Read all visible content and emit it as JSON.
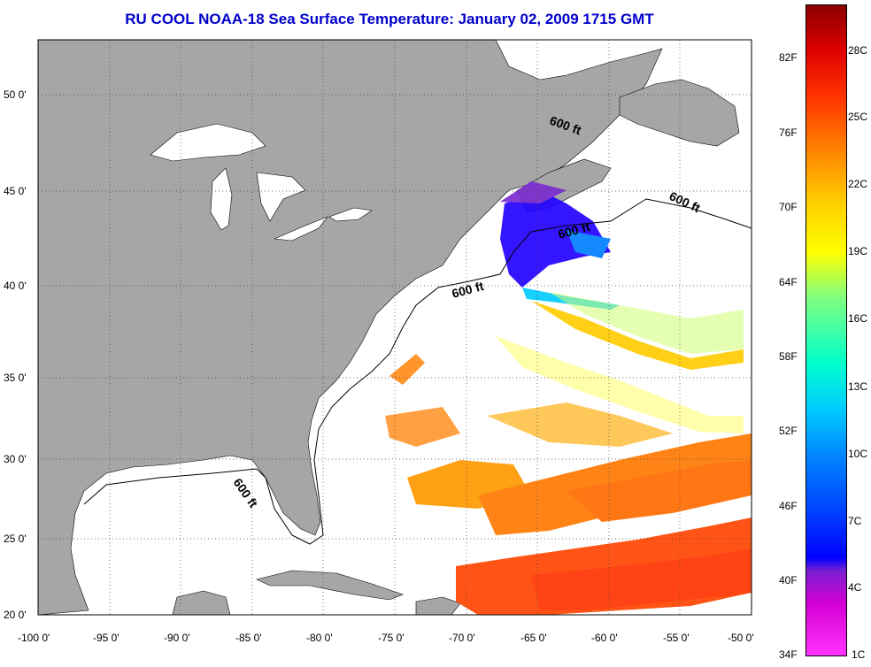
{
  "title": "RU COOL  NOAA-18  Sea Surface Temperature:  January 02, 2009 1715 GMT",
  "x_ticks": [
    "-100 0'",
    "-95 0'",
    "-90 0'",
    "-85 0'",
    "-80 0'",
    "-75 0'",
    "-70 0'",
    "-65 0'",
    "-60 0'",
    "-55 0'",
    "-50 0'"
  ],
  "y_ticks": [
    "50 0'",
    "45 0'",
    "40 0'",
    "35 0'",
    "30 0'",
    "25 0'",
    "20 0'"
  ],
  "isobath_labels": [
    "600 ft",
    "600 ft",
    "600 ft",
    "600 ft",
    "600 ft"
  ],
  "colorbar": {
    "fahrenheit": [
      "82F",
      "76F",
      "70F",
      "64F",
      "58F",
      "52F",
      "46F",
      "40F",
      "34F"
    ],
    "celsius": [
      "28C",
      "25C",
      "22C",
      "19C",
      "16C",
      "13C",
      "10C",
      "7C",
      "4C",
      "1C"
    ]
  },
  "colors": {
    "land": "#a6a6a6",
    "title": "#0000cc",
    "ocean_no_data": "#ffffff"
  }
}
